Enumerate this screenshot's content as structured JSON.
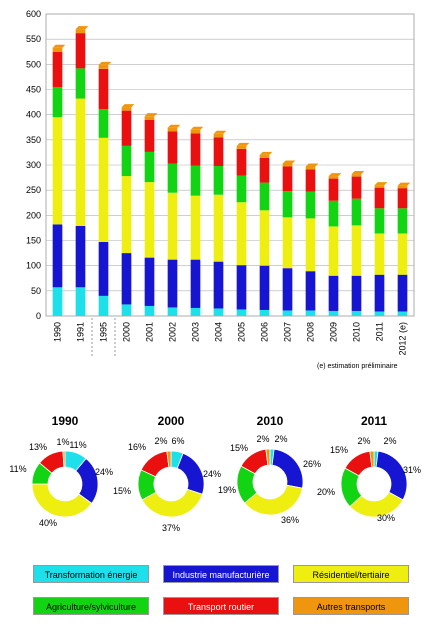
{
  "chart_data": [
    {
      "type": "bar",
      "stacked": true,
      "categories": [
        "1990",
        "1991",
        "1995",
        "2000",
        "2001",
        "2002",
        "2003",
        "2004",
        "2005",
        "2006",
        "2007",
        "2008",
        "2009",
        "2010",
        "2011",
        "2012 (e)"
      ],
      "ylim": [
        0,
        600
      ],
      "yticks": [
        0,
        50,
        100,
        150,
        200,
        250,
        300,
        350,
        400,
        450,
        500,
        550,
        600
      ],
      "grid": true,
      "series": [
        {
          "name": "Transformation énergie",
          "color": "#1ee0ea",
          "values": [
            57,
            57,
            40,
            23,
            20,
            17,
            16,
            15,
            13,
            12,
            11,
            11,
            10,
            10,
            9,
            9
          ]
        },
        {
          "name": "Industrie manufacturière",
          "color": "#1515d2",
          "values": [
            125,
            122,
            107,
            102,
            96,
            95,
            96,
            93,
            88,
            88,
            84,
            78,
            70,
            70,
            73,
            73
          ]
        },
        {
          "name": "Résidentiel/tertiaire",
          "color": "#eeee10",
          "values": [
            213,
            253,
            207,
            153,
            150,
            133,
            127,
            133,
            125,
            110,
            101,
            105,
            98,
            100,
            82,
            82
          ]
        },
        {
          "name": "Agriculture/sylviculture",
          "color": "#12d412",
          "values": [
            60,
            60,
            57,
            60,
            60,
            58,
            60,
            57,
            53,
            55,
            52,
            53,
            51,
            53,
            50,
            50
          ]
        },
        {
          "name": "Transport routier",
          "color": "#ea1010",
          "values": [
            70,
            70,
            80,
            70,
            64,
            64,
            64,
            57,
            53,
            49,
            49,
            44,
            44,
            44,
            41,
            40
          ]
        },
        {
          "name": "Autres transports",
          "color": "#f0960e",
          "values": [
            8,
            8,
            8,
            7,
            7,
            7,
            7,
            7,
            6,
            6,
            6,
            6,
            5,
            5,
            5,
            5
          ]
        }
      ]
    },
    {
      "type": "pie",
      "donuts": [
        {
          "title": "1990",
          "values": [
            11,
            24,
            40,
            11,
            13,
            1
          ],
          "labels": [
            "11%",
            "24%",
            "40%",
            "11%",
            "13%",
            "1%"
          ]
        },
        {
          "title": "2000",
          "values": [
            6,
            24,
            37,
            15,
            16,
            2
          ],
          "labels": [
            "6%",
            "24%",
            "37%",
            "15%",
            "16%",
            "2%"
          ]
        },
        {
          "title": "2010",
          "values": [
            2,
            26,
            36,
            19,
            15,
            2
          ],
          "labels": [
            "2%",
            "26%",
            "36%",
            "19%",
            "15%",
            "2%"
          ]
        },
        {
          "title": "2011",
          "values": [
            2,
            31,
            30,
            20,
            15,
            2
          ],
          "labels": [
            "2%",
            "31%",
            "30%",
            "20%",
            "15%",
            "2%"
          ]
        }
      ]
    }
  ],
  "footnote": "(e) estimation préliminaire",
  "legend": [
    {
      "label": "Transformation énergie",
      "color": "#1ee0ea",
      "text_color": "#000000"
    },
    {
      "label": "Industrie manufacturière",
      "color": "#1515d2",
      "text_color": "#ffffff"
    },
    {
      "label": "Résidentiel/tertiaire",
      "color": "#eeee10",
      "text_color": "#000000"
    },
    {
      "label": "Agriculture/sylviculture",
      "color": "#12d412",
      "text_color": "#000000"
    },
    {
      "label": "Transport routier",
      "color": "#ea1010",
      "text_color": "#ffffff"
    },
    {
      "label": "Autres transports",
      "color": "#f0960e",
      "text_color": "#000000"
    }
  ]
}
